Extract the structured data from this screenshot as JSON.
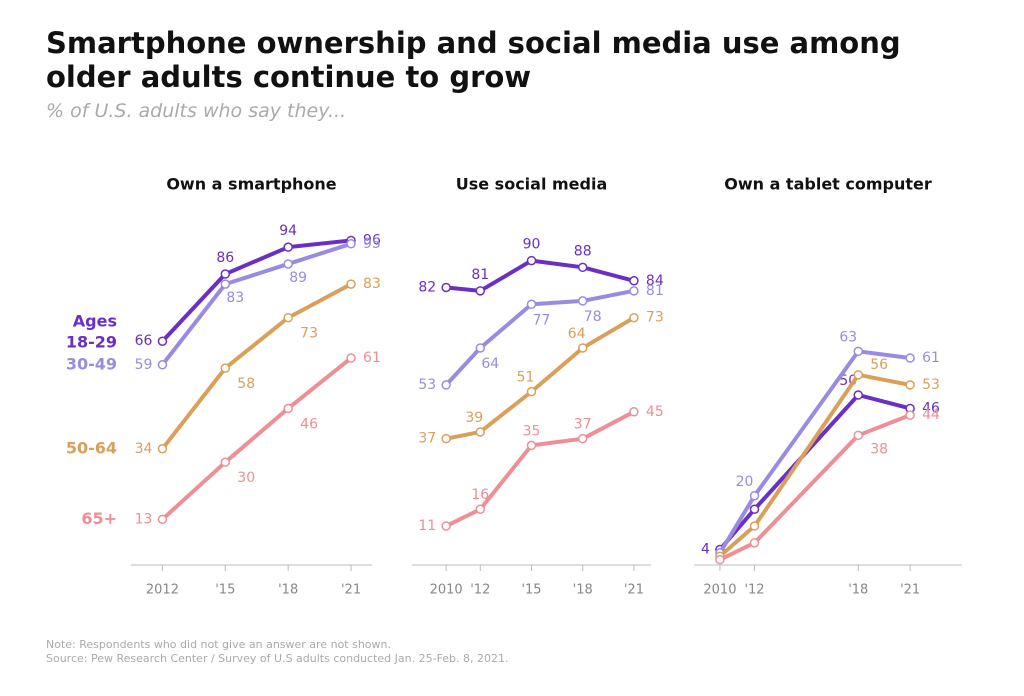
{
  "title": "Smartphone ownership and social media use among older adults continue to grow",
  "subtitle": "% of U.S. adults who say they...",
  "legend_title": "Ages",
  "note": "Note: Respondents who did not give an answer are not shown.",
  "source": "Source: Pew Research Center / Survey of U.S adults conducted Jan. 25-Feb. 8, 2021.",
  "chart_data": [
    {
      "type": "line",
      "title": "Own a smartphone",
      "x": [
        2012,
        2015,
        2018,
        2021
      ],
      "xlim": [
        2010.5,
        2022
      ],
      "ylim": [
        0,
        100
      ],
      "xticks": [
        {
          "value": 2012,
          "label": "2012"
        },
        {
          "value": 2015,
          "label": "'15"
        },
        {
          "value": 2018,
          "label": "'18"
        },
        {
          "value": 2021,
          "label": "'21"
        }
      ],
      "series": [
        {
          "name": "18-29",
          "color": "#6a2fc4",
          "values": [
            66,
            86,
            94,
            96
          ]
        },
        {
          "name": "30-49",
          "color": "#9b8be0",
          "values": [
            59,
            83,
            89,
            95
          ]
        },
        {
          "name": "50-64",
          "color": "#d9a05b",
          "values": [
            34,
            58,
            73,
            83
          ]
        },
        {
          "name": "65+",
          "color": "#ec8f96",
          "values": [
            13,
            30,
            46,
            61
          ]
        }
      ]
    },
    {
      "type": "line",
      "title": "Use social media",
      "x": [
        2010,
        2012,
        2015,
        2018,
        2021
      ],
      "xlim": [
        2008,
        2022
      ],
      "ylim": [
        0,
        100
      ],
      "xticks": [
        {
          "value": 2010,
          "label": "2010"
        },
        {
          "value": 2012,
          "label": "'12"
        },
        {
          "value": 2015,
          "label": "'15"
        },
        {
          "value": 2018,
          "label": "'18"
        },
        {
          "value": 2021,
          "label": "'21"
        }
      ],
      "series": [
        {
          "color": "#6a2fc4",
          "values": [
            82,
            81,
            90,
            88,
            84
          ]
        },
        {
          "color": "#9b8be0",
          "values": [
            53,
            64,
            77,
            78,
            81
          ]
        },
        {
          "color": "#d9a05b",
          "values": [
            37,
            39,
            51,
            64,
            73
          ]
        },
        {
          "color": "#ec8f96",
          "values": [
            11,
            16,
            35,
            37,
            45
          ]
        }
      ]
    },
    {
      "type": "line",
      "title": "Own a tablet computer",
      "x": [
        2010,
        2012,
        2018,
        2021
      ],
      "xlim": [
        2008.5,
        2024
      ],
      "ylim": [
        0,
        100
      ],
      "xticks": [
        {
          "value": 2010,
          "label": "2010"
        },
        {
          "value": 2012,
          "label": "'12"
        },
        {
          "value": 2018,
          "label": "'18"
        },
        {
          "value": 2021,
          "label": "'21"
        }
      ],
      "series": [
        {
          "color": "#6a2fc4",
          "values": [
            4,
            16,
            50,
            46
          ],
          "value_labels": [
            "4",
            null,
            "50",
            "46"
          ]
        },
        {
          "color": "#9b8be0",
          "values": [
            3,
            20,
            63,
            61
          ],
          "value_labels": [
            null,
            "20",
            "63",
            "61"
          ]
        },
        {
          "color": "#d9a05b",
          "values": [
            2,
            11,
            56,
            53
          ],
          "value_labels": [
            null,
            null,
            "56",
            "53"
          ]
        },
        {
          "color": "#ec8f96",
          "values": [
            1,
            6,
            38,
            44
          ],
          "value_labels": [
            null,
            null,
            "38",
            "44"
          ]
        }
      ]
    }
  ]
}
